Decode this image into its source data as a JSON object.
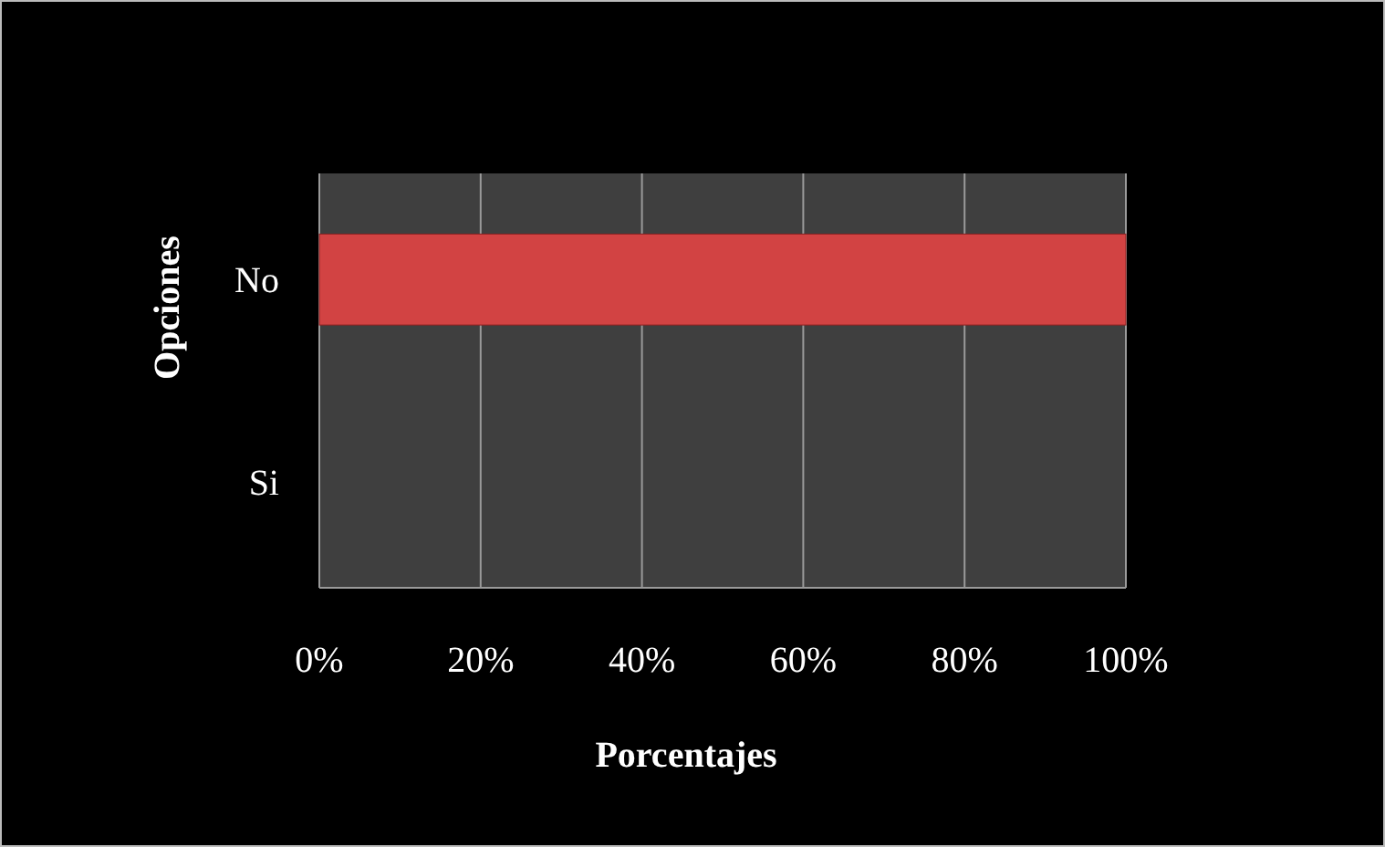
{
  "chart_data": {
    "type": "bar",
    "orientation": "horizontal",
    "xlabel": "Porcentajes",
    "ylabel": "Opciones",
    "categories": [
      "No",
      "Si"
    ],
    "series": [
      {
        "colors": [
          "#d24343",
          "#2e5f9e"
        ],
        "values": [
          100,
          0
        ]
      }
    ],
    "xlim": [
      0,
      100
    ],
    "xticks": [
      {
        "value": 0,
        "label": "0%"
      },
      {
        "value": 20,
        "label": "20%"
      },
      {
        "value": 40,
        "label": "40%"
      },
      {
        "value": 60,
        "label": "60%"
      },
      {
        "value": 80,
        "label": "80%"
      },
      {
        "value": 100,
        "label": "100%"
      }
    ],
    "grid": "x"
  }
}
